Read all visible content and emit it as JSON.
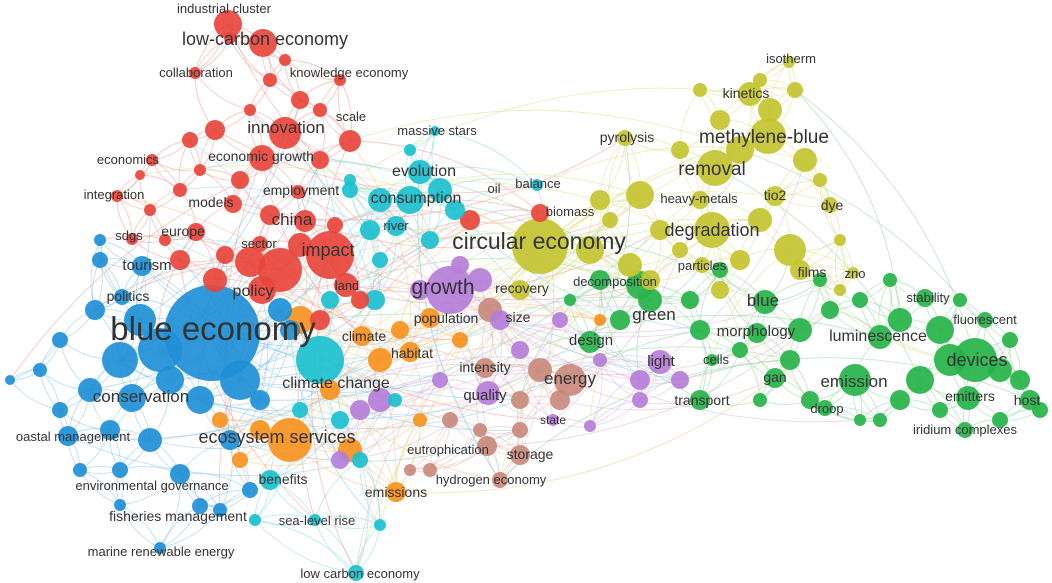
{
  "clusters": {
    "red": {
      "color": "#e8453c",
      "edge": "#f09a94"
    },
    "blue": {
      "color": "#1f8fd6",
      "edge": "#86c2ea"
    },
    "cyan": {
      "color": "#1cc0cf",
      "edge": "#88dbe3"
    },
    "yellow": {
      "color": "#c4c431",
      "edge": "#dede8a"
    },
    "green": {
      "color": "#27b34a",
      "edge": "#8fd6a0"
    },
    "purple": {
      "color": "#b57ed9",
      "edge": "#d8b9ec"
    },
    "orange": {
      "color": "#f7931e",
      "edge": "#f9c486"
    },
    "brown": {
      "color": "#c98a7c",
      "edge": "#e2bcb3"
    }
  },
  "terms": [
    {
      "key": "industrial-cluster",
      "label": "industrial cluster",
      "cluster": "red"
    },
    {
      "key": "low-carbon-economy-top",
      "label": "low-carbon economy",
      "cluster": "red"
    },
    {
      "key": "collaboration",
      "label": "collaboration",
      "cluster": "red"
    },
    {
      "key": "knowledge-economy",
      "label": "knowledge economy",
      "cluster": "red"
    },
    {
      "key": "scale",
      "label": "scale",
      "cluster": "red"
    },
    {
      "key": "innovation",
      "label": "innovation",
      "cluster": "red"
    },
    {
      "key": "economics",
      "label": "economics",
      "cluster": "red"
    },
    {
      "key": "economic-growth",
      "label": "economic growth",
      "cluster": "red"
    },
    {
      "key": "integration",
      "label": "integration",
      "cluster": "red"
    },
    {
      "key": "employment",
      "label": "employment",
      "cluster": "red"
    },
    {
      "key": "models",
      "label": "models",
      "cluster": "red"
    },
    {
      "key": "china",
      "label": "china",
      "cluster": "red"
    },
    {
      "key": "sdgs",
      "label": "sdgs",
      "cluster": "red"
    },
    {
      "key": "europe",
      "label": "europe",
      "cluster": "red"
    },
    {
      "key": "sector",
      "label": "sector",
      "cluster": "red"
    },
    {
      "key": "impact",
      "label": "impact",
      "cluster": "red"
    },
    {
      "key": "land",
      "label": "land",
      "cluster": "red"
    },
    {
      "key": "policy",
      "label": "policy",
      "cluster": "red"
    },
    {
      "key": "oil",
      "label": "oil",
      "cluster": "red"
    },
    {
      "key": "biomass",
      "label": "biomass",
      "cluster": "red"
    },
    {
      "key": "tourism",
      "label": "tourism",
      "cluster": "blue"
    },
    {
      "key": "politics",
      "label": "politics",
      "cluster": "blue"
    },
    {
      "key": "blue-economy",
      "label": "blue economy",
      "cluster": "blue"
    },
    {
      "key": "conservation",
      "label": "conservation",
      "cluster": "blue"
    },
    {
      "key": "coastal-management",
      "label": "oastal management",
      "cluster": "blue"
    },
    {
      "key": "environmental-governance",
      "label": "environmental governance",
      "cluster": "blue"
    },
    {
      "key": "fisheries-management",
      "label": "fisheries management",
      "cluster": "blue"
    },
    {
      "key": "marine-renewable-energy",
      "label": "marine renewable energy",
      "cluster": "blue"
    },
    {
      "key": "massive-stars",
      "label": "massive stars",
      "cluster": "cyan"
    },
    {
      "key": "evolution",
      "label": "evolution",
      "cluster": "cyan"
    },
    {
      "key": "consumption",
      "label": "consumption",
      "cluster": "cyan"
    },
    {
      "key": "river",
      "label": "river",
      "cluster": "cyan"
    },
    {
      "key": "climate-change",
      "label": "climate change",
      "cluster": "cyan"
    },
    {
      "key": "benefits",
      "label": "benefits",
      "cluster": "cyan"
    },
    {
      "key": "sea-level-rise",
      "label": "sea-level rise",
      "cluster": "cyan"
    },
    {
      "key": "low-carbon-economy-bottom",
      "label": "low carbon economy",
      "cluster": "cyan"
    },
    {
      "key": "balance",
      "label": "balance",
      "cluster": "cyan"
    },
    {
      "key": "circular-economy",
      "label": "circular economy",
      "cluster": "yellow"
    },
    {
      "key": "isotherm",
      "label": "isotherm",
      "cluster": "yellow"
    },
    {
      "key": "kinetics",
      "label": "kinetics",
      "cluster": "yellow"
    },
    {
      "key": "pyrolysis",
      "label": "pyrolysis",
      "cluster": "yellow"
    },
    {
      "key": "methylene-blue",
      "label": "methylene-blue",
      "cluster": "yellow"
    },
    {
      "key": "removal",
      "label": "removal",
      "cluster": "yellow"
    },
    {
      "key": "heavy-metals",
      "label": "heavy-metals",
      "cluster": "yellow"
    },
    {
      "key": "tio2",
      "label": "tio2",
      "cluster": "yellow"
    },
    {
      "key": "dye",
      "label": "dye",
      "cluster": "yellow"
    },
    {
      "key": "degradation",
      "label": "degradation",
      "cluster": "yellow"
    },
    {
      "key": "particles",
      "label": "particles",
      "cluster": "yellow"
    },
    {
      "key": "films",
      "label": "films",
      "cluster": "yellow"
    },
    {
      "key": "zno",
      "label": "zno",
      "cluster": "yellow"
    },
    {
      "key": "recovery",
      "label": "recovery",
      "cluster": "yellow"
    },
    {
      "key": "decomposition",
      "label": "decomposition",
      "cluster": "green"
    },
    {
      "key": "green",
      "label": "green",
      "cluster": "green"
    },
    {
      "key": "blue",
      "label": "blue",
      "cluster": "green"
    },
    {
      "key": "stability",
      "label": "stability",
      "cluster": "green"
    },
    {
      "key": "fluorescent",
      "label": "fluorescent",
      "cluster": "green"
    },
    {
      "key": "morphology",
      "label": "morphology",
      "cluster": "green"
    },
    {
      "key": "luminescence",
      "label": "luminescence",
      "cluster": "green"
    },
    {
      "key": "design",
      "label": "design",
      "cluster": "green"
    },
    {
      "key": "devices",
      "label": "devices",
      "cluster": "green"
    },
    {
      "key": "cells",
      "label": "cells",
      "cluster": "green"
    },
    {
      "key": "gan",
      "label": "gan",
      "cluster": "green"
    },
    {
      "key": "emission",
      "label": "emission",
      "cluster": "green"
    },
    {
      "key": "emitters",
      "label": "emitters",
      "cluster": "green"
    },
    {
      "key": "host",
      "label": "host",
      "cluster": "green"
    },
    {
      "key": "transport",
      "label": "transport",
      "cluster": "green"
    },
    {
      "key": "droop",
      "label": "droop",
      "cluster": "green"
    },
    {
      "key": "iridium-complexes",
      "label": "iridium complexes",
      "cluster": "green"
    },
    {
      "key": "growth",
      "label": "growth",
      "cluster": "purple"
    },
    {
      "key": "light",
      "label": "light",
      "cluster": "purple"
    },
    {
      "key": "quality",
      "label": "quality",
      "cluster": "purple"
    },
    {
      "key": "state",
      "label": "state",
      "cluster": "purple"
    },
    {
      "key": "size",
      "label": "size",
      "cluster": "purple"
    },
    {
      "key": "population",
      "label": "population",
      "cluster": "orange"
    },
    {
      "key": "climate",
      "label": "climate",
      "cluster": "orange"
    },
    {
      "key": "habitat",
      "label": "habitat",
      "cluster": "orange"
    },
    {
      "key": "ecosystem-services",
      "label": "ecosystem services",
      "cluster": "orange"
    },
    {
      "key": "emissions",
      "label": "emissions",
      "cluster": "orange"
    },
    {
      "key": "intensity",
      "label": "intensity",
      "cluster": "brown"
    },
    {
      "key": "energy",
      "label": "energy",
      "cluster": "brown"
    },
    {
      "key": "eutrophication",
      "label": "eutrophication",
      "cluster": "brown"
    },
    {
      "key": "storage",
      "label": "storage",
      "cluster": "brown"
    },
    {
      "key": "hydrogen-economy",
      "label": "hydrogen economy",
      "cluster": "brown"
    }
  ]
}
